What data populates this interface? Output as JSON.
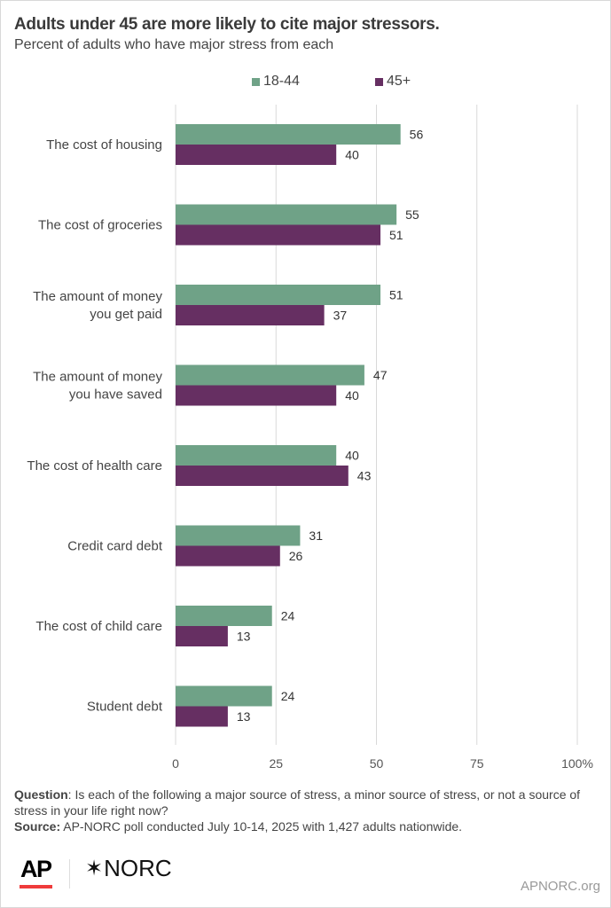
{
  "header": {
    "title": "Adults under 45 are more likely to cite major stressors.",
    "subtitle": "Percent of adults who have major stress from each"
  },
  "legend": [
    {
      "label": "18-44",
      "color": "#6fa287"
    },
    {
      "label": "45+",
      "color": "#662f62"
    }
  ],
  "chart_data": {
    "type": "bar",
    "orientation": "horizontal",
    "title": "Adults under 45 are more likely to cite major stressors.",
    "subtitle": "Percent of adults who have major stress from each",
    "categories": [
      [
        "The cost of housing"
      ],
      [
        "The cost of groceries"
      ],
      [
        "The amount of money",
        "you get paid"
      ],
      [
        "The amount of money",
        "you have saved"
      ],
      [
        "The cost of health care"
      ],
      [
        "Credit card debt"
      ],
      [
        "The cost of child care"
      ],
      [
        "Student debt"
      ]
    ],
    "series": [
      {
        "name": "18-44",
        "color": "#6fa287",
        "values": [
          56,
          55,
          51,
          47,
          40,
          31,
          24,
          24
        ]
      },
      {
        "name": "45+",
        "color": "#662f62",
        "values": [
          40,
          51,
          37,
          40,
          43,
          26,
          13,
          13
        ]
      }
    ],
    "xlim": [
      0,
      100
    ],
    "xticks": [
      0,
      25,
      50,
      75,
      100
    ],
    "xtick_labels": [
      "0",
      "25",
      "50",
      "75",
      "100%"
    ],
    "xlabel": "",
    "ylabel": "",
    "grid": true,
    "legend_position": "top"
  },
  "footer": {
    "question_label": "Question",
    "question_text": ": Is each of the following a major source of stress, a minor source of stress, or not a source of stress in your life right now?",
    "source_label": "Source:",
    "source_text": " AP-NORC poll conducted July 10-14, 2025 with 1,427 adults nationwide.",
    "logo_ap": "AP",
    "logo_norc": "NORC",
    "logo_norc_star": "✶",
    "site": "APNORC.org"
  }
}
